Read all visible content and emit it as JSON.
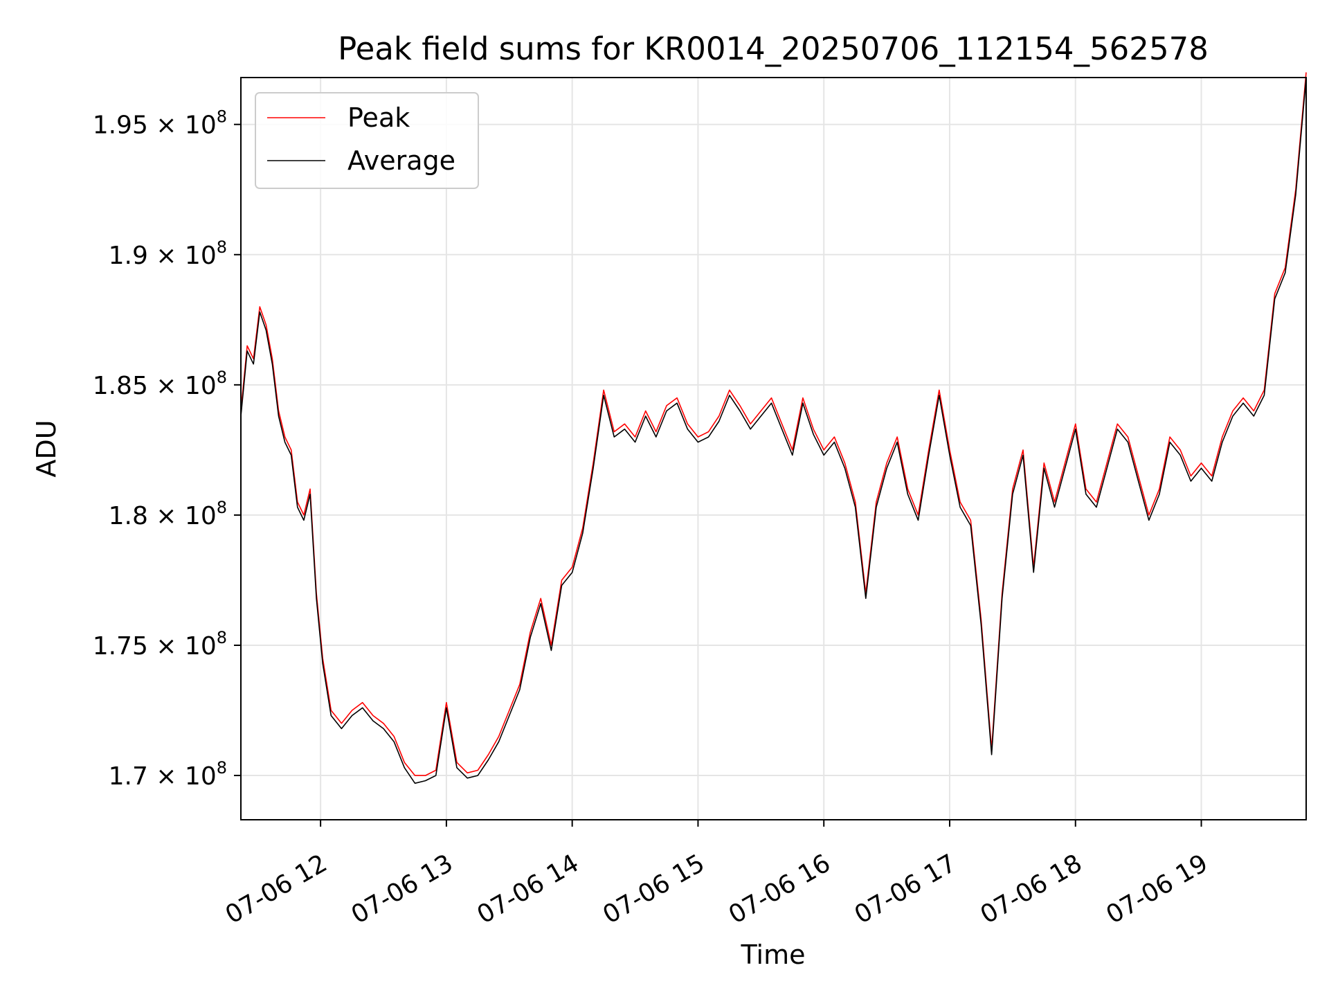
{
  "chart_data": {
    "type": "line",
    "title": "Peak field sums for KR0014_20250706_112154_562578",
    "xlabel": "Time",
    "ylabel": "ADU",
    "xlim": [
      "07-06 11:22",
      "07-06 19:50"
    ],
    "ylim": [
      168300000,
      196800000
    ],
    "grid": true,
    "legend_position": "upper-left",
    "x_ticks": [
      {
        "value": "07-06 12:00",
        "label": "07-06 12"
      },
      {
        "value": "07-06 13:00",
        "label": "07-06 13"
      },
      {
        "value": "07-06 14:00",
        "label": "07-06 14"
      },
      {
        "value": "07-06 15:00",
        "label": "07-06 15"
      },
      {
        "value": "07-06 16:00",
        "label": "07-06 16"
      },
      {
        "value": "07-06 17:00",
        "label": "07-06 17"
      },
      {
        "value": "07-06 18:00",
        "label": "07-06 18"
      },
      {
        "value": "07-06 19:00",
        "label": "07-06 19"
      }
    ],
    "y_ticks": [
      {
        "value": 170000000,
        "mantissa": "1.7",
        "exponent": "8"
      },
      {
        "value": 175000000,
        "mantissa": "1.75",
        "exponent": "8"
      },
      {
        "value": 180000000,
        "mantissa": "1.8",
        "exponent": "8"
      },
      {
        "value": 185000000,
        "mantissa": "1.85",
        "exponent": "8"
      },
      {
        "value": 190000000,
        "mantissa": "1.9",
        "exponent": "8"
      },
      {
        "value": 195000000,
        "mantissa": "1.95",
        "exponent": "8"
      }
    ],
    "x": [
      "07-06 11:22",
      "07-06 11:25",
      "07-06 11:28",
      "07-06 11:31",
      "07-06 11:34",
      "07-06 11:37",
      "07-06 11:40",
      "07-06 11:43",
      "07-06 11:46",
      "07-06 11:49",
      "07-06 11:52",
      "07-06 11:55",
      "07-06 11:58",
      "07-06 12:01",
      "07-06 12:05",
      "07-06 12:10",
      "07-06 12:15",
      "07-06 12:20",
      "07-06 12:25",
      "07-06 12:30",
      "07-06 12:35",
      "07-06 12:40",
      "07-06 12:45",
      "07-06 12:50",
      "07-06 12:55",
      "07-06 13:00",
      "07-06 13:05",
      "07-06 13:10",
      "07-06 13:15",
      "07-06 13:20",
      "07-06 13:25",
      "07-06 13:30",
      "07-06 13:35",
      "07-06 13:40",
      "07-06 13:45",
      "07-06 13:50",
      "07-06 13:55",
      "07-06 14:00",
      "07-06 14:05",
      "07-06 14:10",
      "07-06 14:15",
      "07-06 14:20",
      "07-06 14:25",
      "07-06 14:30",
      "07-06 14:35",
      "07-06 14:40",
      "07-06 14:45",
      "07-06 14:50",
      "07-06 14:55",
      "07-06 15:00",
      "07-06 15:05",
      "07-06 15:10",
      "07-06 15:15",
      "07-06 15:20",
      "07-06 15:25",
      "07-06 15:30",
      "07-06 15:35",
      "07-06 15:40",
      "07-06 15:45",
      "07-06 15:50",
      "07-06 15:55",
      "07-06 16:00",
      "07-06 16:05",
      "07-06 16:10",
      "07-06 16:15",
      "07-06 16:20",
      "07-06 16:25",
      "07-06 16:30",
      "07-06 16:35",
      "07-06 16:40",
      "07-06 16:45",
      "07-06 16:50",
      "07-06 16:55",
      "07-06 17:00",
      "07-06 17:05",
      "07-06 17:10",
      "07-06 17:15",
      "07-06 17:20",
      "07-06 17:25",
      "07-06 17:30",
      "07-06 17:35",
      "07-06 17:40",
      "07-06 17:45",
      "07-06 17:50",
      "07-06 17:55",
      "07-06 18:00",
      "07-06 18:05",
      "07-06 18:10",
      "07-06 18:15",
      "07-06 18:20",
      "07-06 18:25",
      "07-06 18:30",
      "07-06 18:35",
      "07-06 18:40",
      "07-06 18:45",
      "07-06 18:50",
      "07-06 18:55",
      "07-06 19:00",
      "07-06 19:05",
      "07-06 19:10",
      "07-06 19:15",
      "07-06 19:20",
      "07-06 19:25",
      "07-06 19:30",
      "07-06 19:35",
      "07-06 19:40",
      "07-06 19:45",
      "07-06 19:50"
    ],
    "series": [
      {
        "name": "Peak",
        "color": "#ff0000",
        "values": [
          184000000,
          186500000,
          186000000,
          188000000,
          187300000,
          186000000,
          184000000,
          183000000,
          182500000,
          180500000,
          180000000,
          181000000,
          177000000,
          174500000,
          172500000,
          172000000,
          172500000,
          172800000,
          172300000,
          172000000,
          171500000,
          170500000,
          170000000,
          170000000,
          170200000,
          172800000,
          170500000,
          170100000,
          170200000,
          170800000,
          171500000,
          172500000,
          173500000,
          175500000,
          176800000,
          175000000,
          177500000,
          178000000,
          179500000,
          182000000,
          184800000,
          183200000,
          183500000,
          183000000,
          184000000,
          183200000,
          184200000,
          184500000,
          183500000,
          183000000,
          183200000,
          183800000,
          184800000,
          184200000,
          183500000,
          184000000,
          184500000,
          183500000,
          182500000,
          184500000,
          183300000,
          182500000,
          183000000,
          182000000,
          180500000,
          177000000,
          180500000,
          182000000,
          183000000,
          181000000,
          180000000,
          182500000,
          184800000,
          182500000,
          180500000,
          179800000,
          176000000,
          171000000,
          177000000,
          181000000,
          182500000,
          178000000,
          182000000,
          180500000,
          182000000,
          183500000,
          181000000,
          180500000,
          182000000,
          183500000,
          183000000,
          181500000,
          180000000,
          181000000,
          183000000,
          182500000,
          181500000,
          182000000,
          181500000,
          183000000,
          184000000,
          184500000,
          184000000,
          184800000,
          188500000,
          189500000,
          192500000,
          197000000
        ]
      },
      {
        "name": "Average",
        "color": "#000000",
        "values": [
          183800000,
          186300000,
          185800000,
          187800000,
          187100000,
          185800000,
          183800000,
          182800000,
          182300000,
          180300000,
          179800000,
          180800000,
          176800000,
          174300000,
          172300000,
          171800000,
          172300000,
          172600000,
          172100000,
          171800000,
          171300000,
          170300000,
          169700000,
          169800000,
          170000000,
          172600000,
          170300000,
          169900000,
          170000000,
          170600000,
          171300000,
          172300000,
          173300000,
          175300000,
          176600000,
          174800000,
          177300000,
          177800000,
          179300000,
          181800000,
          184600000,
          183000000,
          183300000,
          182800000,
          183800000,
          183000000,
          184000000,
          184300000,
          183300000,
          182800000,
          183000000,
          183600000,
          184600000,
          184000000,
          183300000,
          183800000,
          184300000,
          183300000,
          182300000,
          184300000,
          183100000,
          182300000,
          182800000,
          181800000,
          180300000,
          176800000,
          180300000,
          181800000,
          182800000,
          180800000,
          179800000,
          182300000,
          184600000,
          182300000,
          180300000,
          179600000,
          175800000,
          170800000,
          176800000,
          180800000,
          182300000,
          177800000,
          181800000,
          180300000,
          181800000,
          183300000,
          180800000,
          180300000,
          181800000,
          183300000,
          182800000,
          181300000,
          179800000,
          180800000,
          182800000,
          182300000,
          181300000,
          181800000,
          181300000,
          182800000,
          183800000,
          184300000,
          183800000,
          184600000,
          188300000,
          189300000,
          192300000,
          196800000
        ]
      }
    ]
  }
}
